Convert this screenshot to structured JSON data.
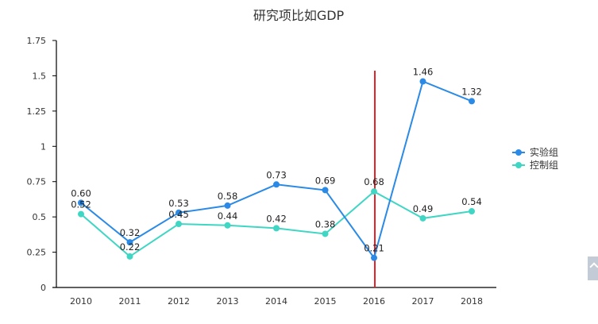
{
  "chart_data": {
    "type": "line",
    "title": "研究项比如GDP",
    "xlabel": "",
    "ylabel": "",
    "categories": [
      "2010",
      "2011",
      "2012",
      "2013",
      "2014",
      "2015",
      "2016",
      "2017",
      "2018"
    ],
    "ylim": [
      0,
      1.75
    ],
    "yticks": [
      0,
      0.25,
      0.5,
      0.75,
      1,
      1.25,
      1.5,
      1.75
    ],
    "ytick_labels": [
      "0",
      "0.25",
      "0.5",
      "0.75",
      "1",
      "1.25",
      "1.5",
      "1.75"
    ],
    "grid": false,
    "legend_position": "right",
    "series": [
      {
        "name": "实验组",
        "color": "#2a8ae6",
        "values": [
          0.6,
          0.32,
          0.53,
          0.58,
          0.73,
          0.69,
          0.21,
          1.46,
          1.32
        ],
        "labels": [
          "0.60",
          "0.32",
          "0.53",
          "0.58",
          "0.73",
          "0.69",
          "0.21",
          "1.46",
          "1.32"
        ]
      },
      {
        "name": "控制组",
        "color": "#3fd6c4",
        "values": [
          0.52,
          0.22,
          0.45,
          0.44,
          0.42,
          0.38,
          0.68,
          0.49,
          0.54
        ],
        "labels": [
          "0.52",
          "0.22",
          "0.45",
          "0.44",
          "0.42",
          "0.38",
          "0.68",
          "0.49",
          "0.54"
        ]
      }
    ],
    "annotations": [
      {
        "type": "vertical-line",
        "x": "2016",
        "color": "#e8202a"
      }
    ]
  }
}
